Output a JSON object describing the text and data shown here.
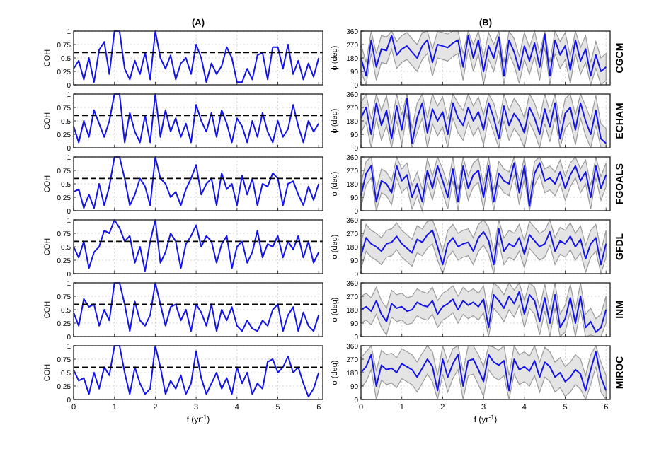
{
  "chart_data": [
    {
      "type": "line",
      "title": "(A)",
      "ylabel": "COH",
      "xlim": [
        0,
        6.1
      ],
      "xticks": [
        0,
        1,
        2,
        3,
        4,
        5,
        6
      ],
      "ylim": [
        0,
        1
      ],
      "yticks": [
        0,
        0.25,
        0.5,
        0.75,
        1
      ],
      "grid": true,
      "tick_labels": "y",
      "ref_lines": [
        {
          "axis": "y",
          "value": 0.6,
          "line_style": "dashed",
          "color": "#000000"
        }
      ],
      "x": [
        0,
        0.125,
        0.25,
        0.375,
        0.5,
        0.625,
        0.75,
        0.875,
        1,
        1.125,
        1.25,
        1.375,
        1.5,
        1.625,
        1.75,
        1.875,
        2,
        2.125,
        2.25,
        2.375,
        2.5,
        2.625,
        2.75,
        2.875,
        3,
        3.125,
        3.25,
        3.375,
        3.5,
        3.625,
        3.75,
        3.875,
        4,
        4.125,
        4.25,
        4.375,
        4.5,
        4.625,
        4.75,
        4.875,
        5,
        5.125,
        5.25,
        5.375,
        5.5,
        5.625,
        5.75,
        5.875,
        6
      ],
      "series": [
        {
          "color": "#1414e6",
          "values": [
            0.3,
            0.45,
            0.1,
            0.5,
            0.05,
            0.65,
            0.8,
            0.2,
            1,
            1,
            0.3,
            0.1,
            0.45,
            0.2,
            0.6,
            0.1,
            1,
            0.5,
            0.3,
            0.55,
            0.1,
            0.4,
            0.5,
            0.2,
            0.75,
            0.5,
            0.05,
            0.4,
            0.2,
            0.35,
            0.7,
            0.5,
            0.05,
            0.05,
            0.3,
            0.1,
            0.55,
            0.6,
            0.1,
            0.7,
            0.7,
            0.3,
            0.75,
            0.2,
            0.45,
            0.1,
            0.4,
            0.15,
            0.5
          ]
        }
      ]
    },
    {
      "type": "line",
      "title": "(B)",
      "ylabel": "ϕ (deg)",
      "y2label": "CGCM",
      "xlim": [
        0,
        6.1
      ],
      "xticks": [
        0,
        1,
        2,
        3,
        4,
        5,
        6
      ],
      "ylim": [
        0,
        360
      ],
      "yticks": [
        0,
        90,
        180,
        270,
        360
      ],
      "grid": true,
      "tick_labels": "y",
      "x": [
        0,
        0.125,
        0.25,
        0.375,
        0.5,
        0.625,
        0.75,
        0.875,
        1,
        1.125,
        1.25,
        1.375,
        1.5,
        1.625,
        1.75,
        1.875,
        2,
        2.125,
        2.25,
        2.375,
        2.5,
        2.625,
        2.75,
        2.875,
        3,
        3.125,
        3.25,
        3.375,
        3.5,
        3.625,
        3.75,
        3.875,
        4,
        4.125,
        4.25,
        4.375,
        4.5,
        4.625,
        4.75,
        4.875,
        5,
        5.125,
        5.25,
        5.375,
        5.5,
        5.625,
        5.75,
        5.875,
        6
      ],
      "series": [
        {
          "color": "#1414e6",
          "values": [
            180,
            60,
            300,
            120,
            240,
            230,
            330,
            200,
            240,
            260,
            220,
            180,
            260,
            300,
            150,
            270,
            260,
            250,
            280,
            300,
            120,
            330,
            180,
            300,
            90,
            260,
            180,
            320,
            60,
            300,
            220,
            100,
            260,
            160,
            280,
            120,
            340,
            60,
            300,
            200,
            260,
            100,
            300,
            160,
            240,
            60,
            200,
            90,
            120
          ],
          "lower": [
            90,
            0,
            210,
            30,
            150,
            140,
            240,
            110,
            150,
            170,
            130,
            90,
            170,
            210,
            60,
            180,
            170,
            160,
            190,
            210,
            30,
            240,
            90,
            210,
            0,
            170,
            90,
            230,
            0,
            210,
            130,
            10,
            170,
            70,
            190,
            30,
            250,
            0,
            210,
            110,
            170,
            10,
            210,
            70,
            150,
            0,
            110,
            0,
            30
          ],
          "upper": [
            270,
            150,
            360,
            210,
            330,
            320,
            360,
            290,
            330,
            350,
            310,
            270,
            350,
            360,
            240,
            360,
            350,
            340,
            360,
            360,
            210,
            360,
            270,
            360,
            180,
            350,
            270,
            360,
            150,
            360,
            310,
            190,
            350,
            250,
            360,
            210,
            360,
            150,
            360,
            290,
            350,
            190,
            360,
            250,
            330,
            150,
            290,
            180,
            210
          ]
        }
      ]
    },
    {
      "type": "line",
      "ylabel": "COH",
      "xlim": [
        0,
        6.1
      ],
      "xticks": [
        0,
        1,
        2,
        3,
        4,
        5,
        6
      ],
      "ylim": [
        0,
        1
      ],
      "yticks": [
        0,
        0.25,
        0.5,
        0.75,
        1
      ],
      "grid": true,
      "tick_labels": "y",
      "ref_lines": [
        {
          "axis": "y",
          "value": 0.6,
          "line_style": "dashed",
          "color": "#000000"
        }
      ],
      "x": [
        0,
        0.125,
        0.25,
        0.375,
        0.5,
        0.625,
        0.75,
        0.875,
        1,
        1.125,
        1.25,
        1.375,
        1.5,
        1.625,
        1.75,
        1.875,
        2,
        2.125,
        2.25,
        2.375,
        2.5,
        2.625,
        2.75,
        2.875,
        3,
        3.125,
        3.25,
        3.375,
        3.5,
        3.625,
        3.75,
        3.875,
        4,
        4.125,
        4.25,
        4.375,
        4.5,
        4.625,
        4.75,
        4.875,
        5,
        5.125,
        5.25,
        5.375,
        5.5,
        5.625,
        5.75,
        5.875,
        6
      ],
      "series": [
        {
          "color": "#1414e6",
          "values": [
            0.4,
            0.1,
            0.5,
            0.2,
            0.7,
            0.45,
            0.2,
            0.5,
            1,
            1,
            0.1,
            0.65,
            0.3,
            0.1,
            0.6,
            0.1,
            1,
            0.2,
            0.7,
            0.3,
            0.55,
            0.2,
            0.45,
            0.1,
            0.8,
            0.5,
            0.3,
            0.65,
            0.2,
            0.7,
            0.45,
            0.1,
            0.55,
            0.4,
            0.1,
            0.5,
            0.2,
            0.65,
            0.3,
            0.1,
            0.5,
            0.2,
            0.35,
            0.8,
            0.4,
            0.1,
            0.5,
            0.3,
            0.45
          ]
        }
      ]
    },
    {
      "type": "line",
      "ylabel": "ϕ (deg)",
      "y2label": "ECHAM",
      "xlim": [
        0,
        6.1
      ],
      "xticks": [
        0,
        1,
        2,
        3,
        4,
        5,
        6
      ],
      "ylim": [
        0,
        360
      ],
      "yticks": [
        0,
        90,
        180,
        270,
        360
      ],
      "grid": true,
      "tick_labels": "y",
      "x": [
        0,
        0.125,
        0.25,
        0.375,
        0.5,
        0.625,
        0.75,
        0.875,
        1,
        1.125,
        1.25,
        1.375,
        1.5,
        1.625,
        1.75,
        1.875,
        2,
        2.125,
        2.25,
        2.375,
        2.5,
        2.625,
        2.75,
        2.875,
        3,
        3.125,
        3.25,
        3.375,
        3.5,
        3.625,
        3.75,
        3.875,
        4,
        4.125,
        4.25,
        4.375,
        4.5,
        4.625,
        4.75,
        4.875,
        5,
        5.125,
        5.25,
        5.375,
        5.5,
        5.625,
        5.75,
        5.875,
        6
      ],
      "series": [
        {
          "color": "#1414e6",
          "values": [
            200,
            270,
            90,
            300,
            150,
            250,
            60,
            280,
            120,
            330,
            30,
            200,
            300,
            100,
            260,
            180,
            240,
            90,
            300,
            200,
            150,
            270,
            180,
            240,
            120,
            300,
            200,
            60,
            280,
            150,
            230,
            180,
            100,
            270,
            200,
            90,
            260,
            140,
            300,
            60,
            230,
            270,
            120,
            300,
            180,
            90,
            250,
            60,
            30
          ],
          "lower": [
            100,
            170,
            0,
            200,
            50,
            150,
            0,
            180,
            20,
            230,
            0,
            100,
            200,
            0,
            160,
            80,
            140,
            0,
            200,
            100,
            50,
            170,
            80,
            140,
            20,
            200,
            100,
            0,
            180,
            50,
            130,
            80,
            0,
            170,
            100,
            0,
            160,
            40,
            200,
            0,
            130,
            170,
            20,
            200,
            80,
            0,
            150,
            0,
            0
          ],
          "upper": [
            300,
            360,
            190,
            360,
            250,
            350,
            160,
            360,
            220,
            360,
            130,
            300,
            360,
            200,
            360,
            280,
            340,
            190,
            360,
            300,
            250,
            360,
            280,
            340,
            220,
            360,
            300,
            160,
            360,
            250,
            330,
            280,
            200,
            360,
            300,
            190,
            360,
            240,
            360,
            160,
            330,
            360,
            220,
            360,
            280,
            190,
            350,
            160,
            130
          ]
        }
      ]
    },
    {
      "type": "line",
      "ylabel": "COH",
      "xlim": [
        0,
        6.1
      ],
      "xticks": [
        0,
        1,
        2,
        3,
        4,
        5,
        6
      ],
      "ylim": [
        0,
        1
      ],
      "yticks": [
        0,
        0.25,
        0.5,
        0.75,
        1
      ],
      "grid": true,
      "tick_labels": "y",
      "ref_lines": [
        {
          "axis": "y",
          "value": 0.6,
          "line_style": "dashed",
          "color": "#000000"
        }
      ],
      "x": [
        0,
        0.125,
        0.25,
        0.375,
        0.5,
        0.625,
        0.75,
        0.875,
        1,
        1.125,
        1.25,
        1.375,
        1.5,
        1.625,
        1.75,
        1.875,
        2,
        2.125,
        2.25,
        2.375,
        2.5,
        2.625,
        2.75,
        2.875,
        3,
        3.125,
        3.25,
        3.375,
        3.5,
        3.625,
        3.75,
        3.875,
        4,
        4.125,
        4.25,
        4.375,
        4.5,
        4.625,
        4.75,
        4.875,
        5,
        5.125,
        5.25,
        5.375,
        5.5,
        5.625,
        5.75,
        5.875,
        6
      ],
      "series": [
        {
          "color": "#1414e6",
          "values": [
            0.35,
            0.4,
            0.05,
            0.3,
            0.05,
            0.5,
            0.1,
            0.45,
            1,
            1,
            0.6,
            0.1,
            0.3,
            0.6,
            0.45,
            0.1,
            1,
            0.6,
            0.5,
            0.25,
            0.35,
            0.1,
            0.4,
            0.6,
            0.85,
            0.3,
            0.5,
            0.6,
            0.1,
            0.7,
            0.4,
            0.5,
            0.1,
            0.65,
            0.3,
            0.6,
            0.1,
            0.5,
            0.45,
            0.7,
            0.6,
            0.1,
            0.5,
            0.55,
            0.3,
            0.1,
            0.45,
            0.2,
            0.5
          ]
        }
      ]
    },
    {
      "type": "line",
      "ylabel": "ϕ (deg)",
      "y2label": "FGOALS",
      "xlim": [
        0,
        6.1
      ],
      "xticks": [
        0,
        1,
        2,
        3,
        4,
        5,
        6
      ],
      "ylim": [
        0,
        360
      ],
      "yticks": [
        0,
        90,
        180,
        270,
        360
      ],
      "grid": true,
      "tick_labels": "y",
      "x": [
        0,
        0.125,
        0.25,
        0.375,
        0.5,
        0.625,
        0.75,
        0.875,
        1,
        1.125,
        1.25,
        1.375,
        1.5,
        1.625,
        1.75,
        1.875,
        2,
        2.125,
        2.25,
        2.375,
        2.5,
        2.625,
        2.75,
        2.875,
        3,
        3.125,
        3.25,
        3.375,
        3.5,
        3.625,
        3.75,
        3.875,
        4,
        4.125,
        4.25,
        4.375,
        4.5,
        4.625,
        4.75,
        4.875,
        5,
        5.125,
        5.25,
        5.375,
        5.5,
        5.625,
        5.75,
        5.875,
        6
      ],
      "series": [
        {
          "color": "#1414e6",
          "values": [
            100,
            250,
            300,
            60,
            200,
            180,
            120,
            300,
            200,
            240,
            90,
            180,
            60,
            270,
            150,
            300,
            200,
            90,
            280,
            60,
            300,
            150,
            240,
            270,
            90,
            300,
            60,
            250,
            200,
            180,
            320,
            120,
            300,
            30,
            250,
            320,
            200,
            220,
            180,
            260,
            150,
            240,
            300,
            200,
            260,
            90,
            300,
            150,
            240
          ],
          "lower": [
            20,
            170,
            220,
            0,
            120,
            100,
            40,
            220,
            120,
            160,
            10,
            100,
            0,
            190,
            70,
            220,
            120,
            10,
            200,
            0,
            220,
            70,
            160,
            190,
            10,
            220,
            0,
            170,
            120,
            100,
            240,
            40,
            220,
            0,
            170,
            240,
            120,
            140,
            100,
            180,
            70,
            160,
            220,
            120,
            180,
            10,
            220,
            70,
            160
          ],
          "upper": [
            180,
            330,
            360,
            140,
            280,
            260,
            200,
            360,
            280,
            320,
            170,
            260,
            140,
            350,
            230,
            360,
            280,
            170,
            360,
            140,
            360,
            230,
            320,
            350,
            170,
            360,
            140,
            330,
            280,
            260,
            360,
            200,
            360,
            110,
            330,
            360,
            280,
            300,
            260,
            340,
            230,
            320,
            360,
            280,
            340,
            170,
            360,
            230,
            320
          ]
        }
      ]
    },
    {
      "type": "line",
      "ylabel": "COH",
      "xlim": [
        0,
        6.1
      ],
      "xticks": [
        0,
        1,
        2,
        3,
        4,
        5,
        6
      ],
      "ylim": [
        0,
        1
      ],
      "yticks": [
        0,
        0.25,
        0.5,
        0.75,
        1
      ],
      "grid": true,
      "tick_labels": "y",
      "ref_lines": [
        {
          "axis": "y",
          "value": 0.6,
          "line_style": "dashed",
          "color": "#000000"
        }
      ],
      "x": [
        0,
        0.125,
        0.25,
        0.375,
        0.5,
        0.625,
        0.75,
        0.875,
        1,
        1.125,
        1.25,
        1.375,
        1.5,
        1.625,
        1.75,
        1.875,
        2,
        2.125,
        2.25,
        2.375,
        2.5,
        2.625,
        2.75,
        2.875,
        3,
        3.125,
        3.25,
        3.375,
        3.5,
        3.625,
        3.75,
        3.875,
        4,
        4.125,
        4.25,
        4.375,
        4.5,
        4.625,
        4.75,
        4.875,
        5,
        5.125,
        5.25,
        5.375,
        5.5,
        5.625,
        5.75,
        5.875,
        6
      ],
      "series": [
        {
          "color": "#1414e6",
          "values": [
            0.5,
            0.3,
            0.6,
            0.1,
            0.4,
            0.5,
            0.8,
            0.75,
            1,
            0.85,
            0.6,
            0.7,
            0.2,
            0.5,
            0.05,
            0.6,
            1,
            0.2,
            0.4,
            0.75,
            0.6,
            0.1,
            0.55,
            0.7,
            0.9,
            0.5,
            0.7,
            0.6,
            0.2,
            0.55,
            0.7,
            0.1,
            0.5,
            0.6,
            0.2,
            0.4,
            0.8,
            0.3,
            0.55,
            0.5,
            0.7,
            0.3,
            0.6,
            0.45,
            0.7,
            0.3,
            0.6,
            0.2,
            0.4
          ]
        }
      ]
    },
    {
      "type": "line",
      "ylabel": "ϕ (deg)",
      "y2label": "GFDL",
      "xlim": [
        0,
        6.1
      ],
      "xticks": [
        0,
        1,
        2,
        3,
        4,
        5,
        6
      ],
      "ylim": [
        0,
        360
      ],
      "yticks": [
        0,
        90,
        180,
        270,
        360
      ],
      "grid": true,
      "tick_labels": "y",
      "x": [
        0,
        0.125,
        0.25,
        0.375,
        0.5,
        0.625,
        0.75,
        0.875,
        1,
        1.125,
        1.25,
        1.375,
        1.5,
        1.625,
        1.75,
        1.875,
        2,
        2.125,
        2.25,
        2.375,
        2.5,
        2.625,
        2.75,
        2.875,
        3,
        3.125,
        3.25,
        3.375,
        3.5,
        3.625,
        3.75,
        3.875,
        4,
        4.125,
        4.25,
        4.375,
        4.5,
        4.625,
        4.75,
        4.875,
        5,
        5.125,
        5.25,
        5.375,
        5.5,
        5.625,
        5.75,
        5.875,
        6
      ],
      "series": [
        {
          "color": "#1414e6",
          "values": [
            120,
            240,
            200,
            180,
            150,
            200,
            210,
            250,
            200,
            170,
            140,
            230,
            210,
            260,
            290,
            180,
            60,
            200,
            240,
            180,
            200,
            210,
            150,
            240,
            280,
            220,
            60,
            300,
            150,
            200,
            180,
            240,
            130,
            260,
            220,
            180,
            200,
            280,
            150,
            220,
            200,
            250,
            180,
            230,
            100,
            200,
            240,
            60,
            200
          ],
          "lower": [
            30,
            150,
            110,
            90,
            60,
            110,
            120,
            160,
            110,
            80,
            50,
            140,
            120,
            170,
            200,
            90,
            0,
            110,
            150,
            90,
            110,
            120,
            60,
            150,
            190,
            130,
            0,
            210,
            60,
            110,
            90,
            150,
            40,
            170,
            130,
            90,
            110,
            190,
            60,
            130,
            110,
            160,
            90,
            140,
            10,
            110,
            150,
            0,
            110
          ],
          "upper": [
            210,
            330,
            290,
            270,
            240,
            290,
            300,
            340,
            290,
            260,
            230,
            320,
            300,
            350,
            360,
            270,
            150,
            290,
            330,
            270,
            290,
            300,
            240,
            330,
            360,
            310,
            150,
            360,
            240,
            290,
            270,
            330,
            220,
            350,
            310,
            270,
            290,
            360,
            240,
            310,
            290,
            340,
            270,
            320,
            190,
            290,
            330,
            150,
            290
          ]
        }
      ]
    },
    {
      "type": "line",
      "ylabel": "COH",
      "xlim": [
        0,
        6.1
      ],
      "xticks": [
        0,
        1,
        2,
        3,
        4,
        5,
        6
      ],
      "ylim": [
        0,
        1
      ],
      "yticks": [
        0,
        0.25,
        0.5,
        0.75,
        1
      ],
      "grid": true,
      "tick_labels": "y",
      "ref_lines": [
        {
          "axis": "y",
          "value": 0.6,
          "line_style": "dashed",
          "color": "#000000"
        }
      ],
      "x": [
        0,
        0.125,
        0.25,
        0.375,
        0.5,
        0.625,
        0.75,
        0.875,
        1,
        1.125,
        1.25,
        1.375,
        1.5,
        1.625,
        1.75,
        1.875,
        2,
        2.125,
        2.25,
        2.375,
        2.5,
        2.625,
        2.75,
        2.875,
        3,
        3.125,
        3.25,
        3.375,
        3.5,
        3.625,
        3.75,
        3.875,
        4,
        4.125,
        4.25,
        4.375,
        4.5,
        4.625,
        4.75,
        4.875,
        5,
        5.125,
        5.25,
        5.375,
        5.5,
        5.625,
        5.75,
        5.875,
        6
      ],
      "series": [
        {
          "color": "#1414e6",
          "values": [
            0.45,
            0.2,
            0.7,
            0.55,
            0.6,
            0.2,
            0.5,
            0.3,
            1,
            1,
            0.6,
            0.1,
            0.65,
            0.3,
            0.2,
            0.4,
            1,
            0.6,
            0.2,
            0.55,
            0.6,
            0.3,
            0.5,
            0.1,
            0.6,
            0.45,
            0.2,
            0.6,
            0.1,
            0.5,
            0.3,
            0.55,
            0.2,
            0.1,
            0.3,
            0.15,
            0.1,
            0.3,
            0.2,
            0.5,
            0.6,
            0.1,
            0.4,
            0.55,
            0.1,
            0.45,
            0.2,
            0.1,
            0.4
          ]
        }
      ]
    },
    {
      "type": "line",
      "ylabel": "ϕ (deg)",
      "y2label": "INM",
      "xlim": [
        0,
        6.1
      ],
      "xticks": [
        0,
        1,
        2,
        3,
        4,
        5,
        6
      ],
      "ylim": [
        0,
        360
      ],
      "yticks": [
        0,
        90,
        180,
        270,
        360
      ],
      "grid": true,
      "tick_labels": "y",
      "x": [
        0,
        0.125,
        0.25,
        0.375,
        0.5,
        0.625,
        0.75,
        0.875,
        1,
        1.125,
        1.25,
        1.375,
        1.5,
        1.625,
        1.75,
        1.875,
        2,
        2.125,
        2.25,
        2.375,
        2.5,
        2.625,
        2.75,
        2.875,
        3,
        3.125,
        3.25,
        3.375,
        3.5,
        3.625,
        3.75,
        3.875,
        4,
        4.125,
        4.25,
        4.375,
        4.5,
        4.625,
        4.75,
        4.875,
        5,
        5.125,
        5.25,
        5.375,
        5.5,
        5.625,
        5.75,
        5.875,
        6
      ],
      "series": [
        {
          "color": "#1414e6",
          "values": [
            180,
            200,
            170,
            240,
            150,
            100,
            220,
            190,
            200,
            170,
            180,
            230,
            210,
            200,
            240,
            150,
            200,
            220,
            250,
            180,
            240,
            210,
            230,
            200,
            250,
            60,
            280,
            240,
            190,
            270,
            220,
            300,
            150,
            280,
            240,
            100,
            260,
            90,
            280,
            60,
            120,
            260,
            90,
            270,
            60,
            100,
            30,
            60,
            180
          ],
          "lower": [
            90,
            110,
            80,
            150,
            60,
            10,
            130,
            100,
            110,
            80,
            90,
            140,
            120,
            110,
            150,
            60,
            110,
            130,
            160,
            90,
            150,
            120,
            140,
            110,
            160,
            0,
            190,
            150,
            100,
            180,
            130,
            210,
            60,
            190,
            150,
            10,
            170,
            0,
            190,
            0,
            30,
            170,
            0,
            180,
            0,
            10,
            0,
            0,
            90
          ],
          "upper": [
            270,
            290,
            260,
            330,
            240,
            190,
            310,
            280,
            290,
            260,
            270,
            320,
            300,
            290,
            330,
            240,
            290,
            310,
            340,
            270,
            330,
            300,
            320,
            290,
            340,
            150,
            360,
            330,
            280,
            360,
            310,
            360,
            240,
            360,
            330,
            190,
            350,
            180,
            360,
            150,
            210,
            350,
            180,
            360,
            150,
            190,
            120,
            150,
            270
          ]
        }
      ]
    },
    {
      "type": "line",
      "ylabel": "COH",
      "xlabel": "f (yr$^{-1}$)",
      "xlim": [
        0,
        6.1
      ],
      "xticks": [
        0,
        1,
        2,
        3,
        4,
        5,
        6
      ],
      "ylim": [
        0,
        1
      ],
      "yticks": [
        0,
        0.25,
        0.5,
        0.75,
        1
      ],
      "grid": true,
      "ref_lines": [
        {
          "axis": "y",
          "value": 0.6,
          "line_style": "dashed",
          "color": "#000000"
        }
      ],
      "x": [
        0,
        0.125,
        0.25,
        0.375,
        0.5,
        0.625,
        0.75,
        0.875,
        1,
        1.125,
        1.25,
        1.375,
        1.5,
        1.625,
        1.75,
        1.875,
        2,
        2.125,
        2.25,
        2.375,
        2.5,
        2.625,
        2.75,
        2.875,
        3,
        3.125,
        3.25,
        3.375,
        3.5,
        3.625,
        3.75,
        3.875,
        4,
        4.125,
        4.25,
        4.375,
        4.5,
        4.625,
        4.75,
        4.875,
        5,
        5.125,
        5.25,
        5.375,
        5.5,
        5.625,
        5.75,
        5.875,
        6
      ],
      "series": [
        {
          "color": "#1414e6",
          "values": [
            0.55,
            0.35,
            0.4,
            0.1,
            0.5,
            0.2,
            0.6,
            0.45,
            1,
            1,
            0.5,
            0.1,
            0.6,
            0.3,
            0.1,
            0.2,
            1,
            0.6,
            0.1,
            0.35,
            0.2,
            0.45,
            0.1,
            0.3,
            0.9,
            0.4,
            0.1,
            0.3,
            0.5,
            0.2,
            0.4,
            0.1,
            0.6,
            0.3,
            0.5,
            0.1,
            0.3,
            0.2,
            0.7,
            0.75,
            0.5,
            0.6,
            0.8,
            0.5,
            0.6,
            0.3,
            0.05,
            0.2,
            0.5
          ]
        }
      ]
    },
    {
      "type": "line",
      "ylabel": "ϕ (deg)",
      "y2label": "MIROC",
      "xlabel": "f (yr$^{-1}$)",
      "xlim": [
        0,
        6.1
      ],
      "xticks": [
        0,
        1,
        2,
        3,
        4,
        5,
        6
      ],
      "ylim": [
        0,
        360
      ],
      "yticks": [
        0,
        90,
        180,
        270,
        360
      ],
      "grid": true,
      "x": [
        0,
        0.125,
        0.25,
        0.375,
        0.5,
        0.625,
        0.75,
        0.875,
        1,
        1.125,
        1.25,
        1.375,
        1.5,
        1.625,
        1.75,
        1.875,
        2,
        2.125,
        2.25,
        2.375,
        2.5,
        2.625,
        2.75,
        2.875,
        3,
        3.125,
        3.25,
        3.375,
        3.5,
        3.625,
        3.75,
        3.875,
        4,
        4.125,
        4.25,
        4.375,
        4.5,
        4.625,
        4.75,
        4.875,
        5,
        5.125,
        5.25,
        5.375,
        5.5,
        5.625,
        5.75,
        5.875,
        6
      ],
      "series": [
        {
          "color": "#1414e6",
          "values": [
            180,
            220,
            300,
            90,
            230,
            200,
            210,
            180,
            240,
            220,
            200,
            150,
            210,
            270,
            220,
            60,
            270,
            150,
            240,
            300,
            90,
            260,
            270,
            200,
            120,
            300,
            250,
            230,
            260,
            60,
            270,
            200,
            220,
            190,
            260,
            150,
            250,
            220,
            150,
            180,
            120,
            150,
            200,
            170,
            60,
            200,
            320,
            150,
            60
          ],
          "lower": [
            80,
            120,
            200,
            0,
            130,
            100,
            110,
            80,
            140,
            120,
            100,
            50,
            110,
            170,
            120,
            0,
            170,
            50,
            140,
            200,
            0,
            160,
            170,
            100,
            20,
            200,
            150,
            130,
            160,
            0,
            170,
            100,
            120,
            90,
            160,
            50,
            150,
            120,
            50,
            80,
            20,
            50,
            100,
            70,
            0,
            100,
            220,
            50,
            0
          ],
          "upper": [
            280,
            320,
            360,
            190,
            330,
            300,
            310,
            280,
            340,
            320,
            300,
            250,
            310,
            360,
            320,
            160,
            360,
            250,
            340,
            360,
            190,
            360,
            360,
            300,
            220,
            360,
            350,
            330,
            360,
            160,
            360,
            300,
            320,
            290,
            360,
            250,
            350,
            320,
            250,
            280,
            220,
            250,
            300,
            270,
            160,
            300,
            360,
            250,
            160
          ]
        }
      ]
    }
  ]
}
